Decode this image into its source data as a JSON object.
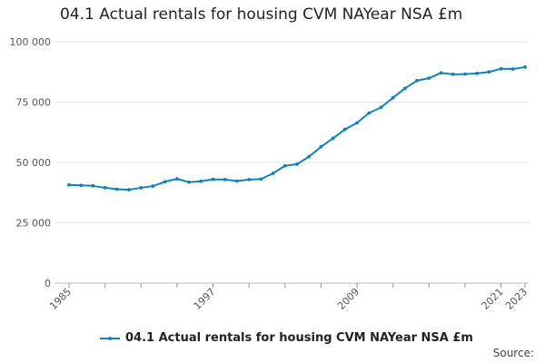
{
  "chart_data": {
    "type": "line",
    "title": "04.1 Actual rentals for housing CVM NAYear NSA £m",
    "xlabel": "",
    "ylabel": "",
    "x": [
      1985,
      1986,
      1987,
      1988,
      1989,
      1990,
      1991,
      1992,
      1993,
      1994,
      1995,
      1996,
      1997,
      1998,
      1999,
      2000,
      2001,
      2002,
      2003,
      2004,
      2005,
      2006,
      2007,
      2008,
      2009,
      2010,
      2011,
      2012,
      2013,
      2014,
      2015,
      2016,
      2017,
      2018,
      2019,
      2020,
      2021,
      2022,
      2023
    ],
    "series": [
      {
        "name": "04.1 Actual rentals for housing CVM NAYear NSA £m",
        "color": "#0f83b8",
        "values": [
          40700,
          40500,
          40300,
          39500,
          38900,
          38700,
          39500,
          40200,
          42000,
          43200,
          41800,
          42200,
          43000,
          42900,
          42300,
          42900,
          43100,
          45500,
          48600,
          49300,
          52400,
          56500,
          60000,
          63700,
          66400,
          70500,
          72800,
          76800,
          80700,
          83900,
          84900,
          87100,
          86500,
          86600,
          86900,
          87500,
          88800,
          88700,
          89500
        ]
      }
    ],
    "xticks": [
      1985,
      1997,
      2009,
      2021,
      2023
    ],
    "xtick_labels": [
      "1985",
      "1997",
      "2009",
      "2021",
      "2023"
    ],
    "yticks": [
      0,
      25000,
      50000,
      75000,
      100000
    ],
    "ytick_labels": [
      "0",
      "25 000",
      "50 000",
      "75 000",
      "100 000"
    ],
    "ylim": [
      0,
      100000
    ],
    "xlim": [
      1985,
      2023
    ],
    "grid": true,
    "legend": "bottom",
    "source_label": "Source:"
  }
}
